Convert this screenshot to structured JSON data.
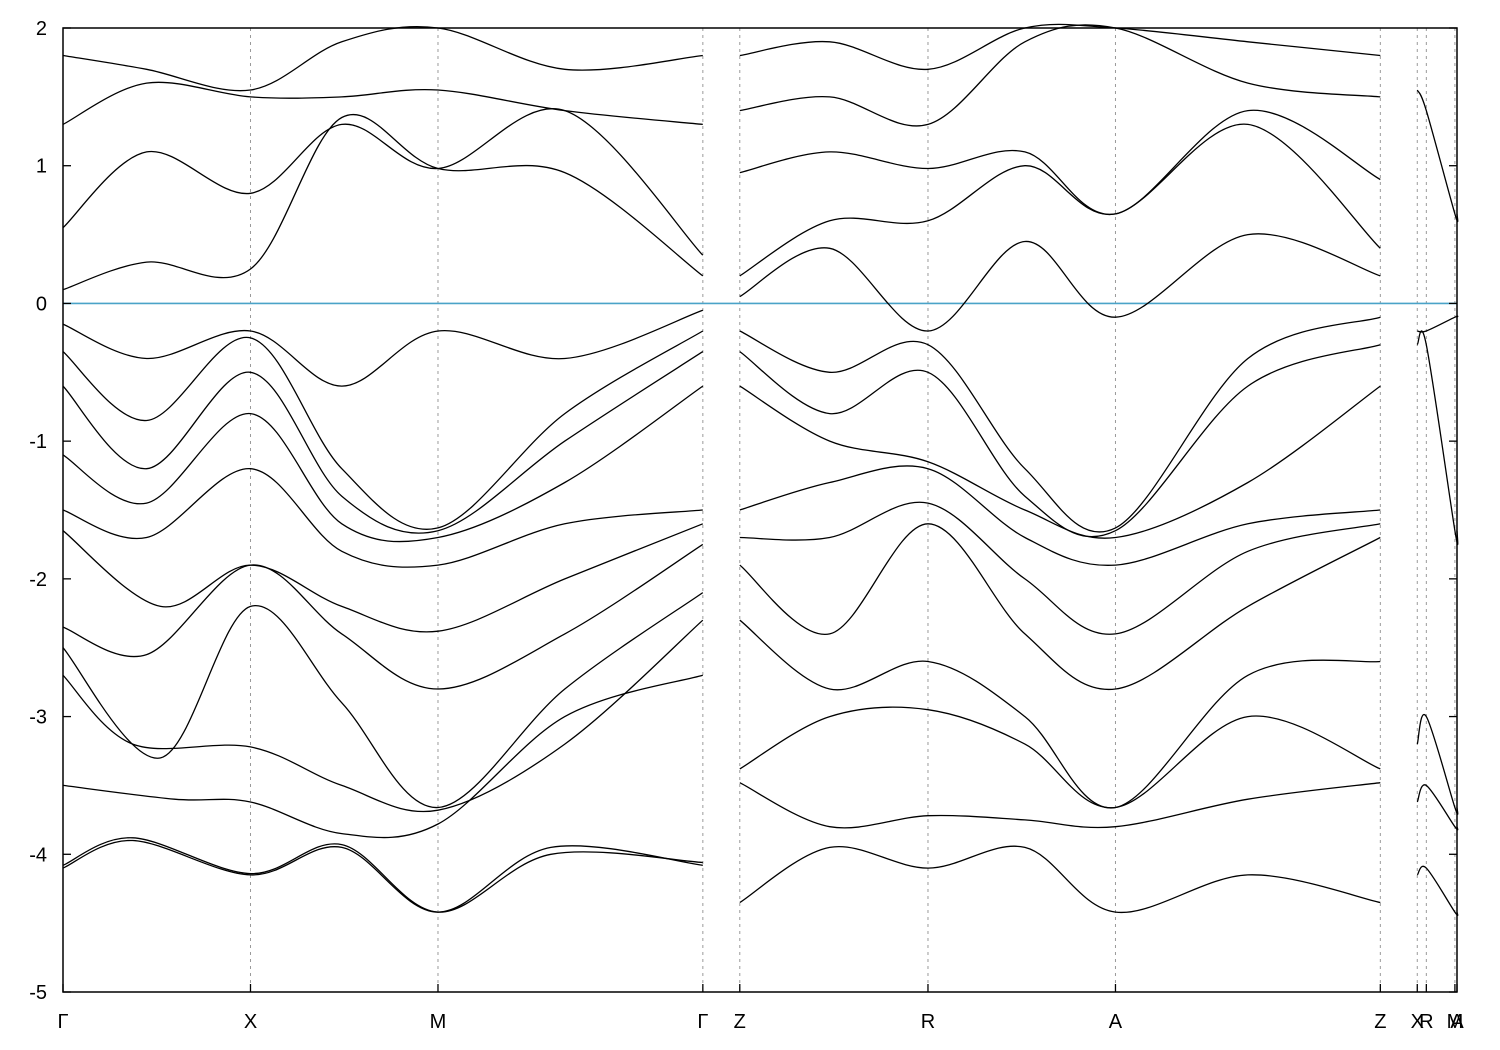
{
  "chart_data": {
    "type": "line",
    "title": "",
    "xlabel": "",
    "ylabel": "",
    "ylim": [
      -5,
      2
    ],
    "yticks": [
      2,
      1,
      0,
      -1,
      -2,
      -3,
      -4,
      -5
    ],
    "xlim": [
      0,
      1.0
    ],
    "kpoints": [
      {
        "label": "Γ",
        "x": 0.0
      },
      {
        "label": "X",
        "x": 0.1345
      },
      {
        "label": "M",
        "x": 0.269
      },
      {
        "label": "Γ",
        "x": 0.459
      },
      {
        "label": "Z",
        "x": 0.4855
      },
      {
        "label": "R",
        "x": 0.6205
      },
      {
        "label": "A",
        "x": 0.755
      },
      {
        "label": "Z",
        "x": 0.945
      },
      {
        "label": "X",
        "x": 0.9715
      },
      {
        "label": "R",
        "x": 0.978
      },
      {
        "label": "M",
        "x": 0.9985
      },
      {
        "label": "A",
        "x": 1.0
      }
    ],
    "fermi_level": {
      "y": 0,
      "color": "#4aa3c8"
    },
    "series_color": "#000000",
    "grid": "vertical dotted at k-points",
    "series": [
      {
        "x": [
          0,
          0.05,
          0.1345,
          0.2,
          0.269,
          0.35,
          0.459
        ],
        "values": [
          -4.1,
          -3.9,
          -4.15,
          -3.95,
          -4.42,
          -3.95,
          -4.08
        ]
      },
      {
        "x": [
          0,
          0.05,
          0.1345,
          0.2,
          0.269,
          0.35,
          0.459
        ],
        "values": [
          -4.08,
          -3.88,
          -4.14,
          -3.93,
          -4.42,
          -4.0,
          -4.06
        ]
      },
      {
        "x": [
          0,
          0.08,
          0.1345,
          0.2,
          0.269,
          0.36,
          0.459
        ],
        "values": [
          -3.5,
          -3.6,
          -3.62,
          -3.85,
          -3.78,
          -3.0,
          -2.7
        ]
      },
      {
        "x": [
          0,
          0.05,
          0.1345,
          0.2,
          0.269,
          0.36,
          0.459
        ],
        "values": [
          -2.7,
          -3.2,
          -3.22,
          -3.5,
          -3.68,
          -3.2,
          -2.3
        ]
      },
      {
        "x": [
          0,
          0.07,
          0.1345,
          0.2,
          0.269,
          0.36,
          0.459
        ],
        "values": [
          -2.5,
          -3.3,
          -2.2,
          -2.9,
          -3.66,
          -2.8,
          -2.1
        ]
      },
      {
        "x": [
          0,
          0.06,
          0.1345,
          0.2,
          0.269,
          0.36,
          0.459
        ],
        "values": [
          -2.35,
          -2.55,
          -1.9,
          -2.4,
          -2.8,
          -2.4,
          -1.75
        ]
      },
      {
        "x": [
          0,
          0.07,
          0.1345,
          0.2,
          0.269,
          0.36,
          0.459
        ],
        "values": [
          -1.65,
          -2.2,
          -1.9,
          -2.2,
          -2.38,
          -2.0,
          -1.6
        ]
      },
      {
        "x": [
          0,
          0.06,
          0.1345,
          0.2,
          0.269,
          0.36,
          0.459
        ],
        "values": [
          -1.5,
          -1.7,
          -1.2,
          -1.8,
          -1.9,
          -1.6,
          -1.5
        ]
      },
      {
        "x": [
          0,
          0.06,
          0.1345,
          0.2,
          0.269,
          0.36,
          0.459
        ],
        "values": [
          -1.1,
          -1.45,
          -0.8,
          -1.6,
          -1.7,
          -1.3,
          -0.6
        ]
      },
      {
        "x": [
          0,
          0.06,
          0.1345,
          0.2,
          0.269,
          0.36,
          0.459
        ],
        "values": [
          -0.6,
          -1.2,
          -0.5,
          -1.4,
          -1.65,
          -1.0,
          -0.35
        ]
      },
      {
        "x": [
          0,
          0.06,
          0.1345,
          0.2,
          0.269,
          0.36,
          0.459
        ],
        "values": [
          -0.35,
          -0.85,
          -0.25,
          -1.2,
          -1.63,
          -0.8,
          -0.2
        ]
      },
      {
        "x": [
          0,
          0.06,
          0.1345,
          0.2,
          0.269,
          0.36,
          0.459
        ],
        "values": [
          -0.15,
          -0.4,
          -0.2,
          -0.6,
          -0.2,
          -0.4,
          -0.05
        ]
      },
      {
        "x": [
          0,
          0.06,
          0.1345,
          0.2,
          0.269,
          0.36,
          0.459
        ],
        "values": [
          0.1,
          0.3,
          0.25,
          1.35,
          0.98,
          0.95,
          0.2
        ]
      },
      {
        "x": [
          0,
          0.06,
          0.1345,
          0.2,
          0.269,
          0.36,
          0.459
        ],
        "values": [
          0.55,
          1.1,
          0.8,
          1.3,
          0.98,
          1.4,
          0.35
        ]
      },
      {
        "x": [
          0,
          0.06,
          0.1345,
          0.2,
          0.269,
          0.36,
          0.459
        ],
        "values": [
          1.3,
          1.6,
          1.5,
          1.5,
          1.55,
          1.4,
          1.3
        ]
      },
      {
        "x": [
          0,
          0.06,
          0.1345,
          0.2,
          0.269,
          0.36,
          0.459
        ],
        "values": [
          1.8,
          1.7,
          1.55,
          1.9,
          2.0,
          1.7,
          1.8
        ]
      },
      {
        "x": [
          0.4855,
          0.55,
          0.6205,
          0.69,
          0.755,
          0.85,
          0.945
        ],
        "values": [
          -4.35,
          -3.95,
          -4.1,
          -3.95,
          -4.42,
          -4.15,
          -4.35
        ]
      },
      {
        "x": [
          0.4855,
          0.55,
          0.6205,
          0.69,
          0.755,
          0.85,
          0.945
        ],
        "values": [
          -3.48,
          -3.8,
          -3.72,
          -3.75,
          -3.8,
          -3.6,
          -3.48
        ]
      },
      {
        "x": [
          0.4855,
          0.55,
          0.6205,
          0.69,
          0.755,
          0.85,
          0.945
        ],
        "values": [
          -3.38,
          -3.0,
          -2.95,
          -3.2,
          -3.66,
          -3.0,
          -3.38
        ]
      },
      {
        "x": [
          0.4855,
          0.55,
          0.6205,
          0.69,
          0.755,
          0.85,
          0.945
        ],
        "values": [
          -2.3,
          -2.8,
          -2.6,
          -3.0,
          -3.66,
          -2.7,
          -2.6
        ]
      },
      {
        "x": [
          0.4855,
          0.55,
          0.6205,
          0.69,
          0.755,
          0.85,
          0.945
        ],
        "values": [
          -1.9,
          -2.4,
          -1.6,
          -2.4,
          -2.8,
          -2.2,
          -1.7
        ]
      },
      {
        "x": [
          0.4855,
          0.55,
          0.6205,
          0.69,
          0.755,
          0.85,
          0.945
        ],
        "values": [
          -1.7,
          -1.7,
          -1.45,
          -2.0,
          -2.4,
          -1.8,
          -1.6
        ]
      },
      {
        "x": [
          0.4855,
          0.55,
          0.6205,
          0.69,
          0.755,
          0.85,
          0.945
        ],
        "values": [
          -1.5,
          -1.3,
          -1.2,
          -1.7,
          -1.9,
          -1.6,
          -1.5
        ]
      },
      {
        "x": [
          0.4855,
          0.55,
          0.6205,
          0.69,
          0.755,
          0.85,
          0.945
        ],
        "values": [
          -0.6,
          -1.0,
          -1.15,
          -1.5,
          -1.7,
          -1.3,
          -0.6
        ]
      },
      {
        "x": [
          0.4855,
          0.55,
          0.6205,
          0.69,
          0.755,
          0.85,
          0.945
        ],
        "values": [
          -0.35,
          -0.8,
          -0.5,
          -1.4,
          -1.65,
          -0.6,
          -0.3
        ]
      },
      {
        "x": [
          0.4855,
          0.55,
          0.6205,
          0.69,
          0.755,
          0.85,
          0.945
        ],
        "values": [
          -0.2,
          -0.5,
          -0.3,
          -1.2,
          -1.63,
          -0.4,
          -0.1
        ]
      },
      {
        "x": [
          0.4855,
          0.55,
          0.6205,
          0.69,
          0.755,
          0.85,
          0.945
        ],
        "values": [
          0.05,
          0.4,
          -0.2,
          0.45,
          -0.1,
          0.5,
          0.2
        ]
      },
      {
        "x": [
          0.4855,
          0.55,
          0.6205,
          0.69,
          0.755,
          0.85,
          0.945
        ],
        "values": [
          0.2,
          0.6,
          0.6,
          1.0,
          0.65,
          1.3,
          0.4
        ]
      },
      {
        "x": [
          0.4855,
          0.55,
          0.6205,
          0.69,
          0.755,
          0.85,
          0.945
        ],
        "values": [
          0.95,
          1.1,
          0.98,
          1.1,
          0.65,
          1.4,
          0.9
        ]
      },
      {
        "x": [
          0.4855,
          0.55,
          0.6205,
          0.69,
          0.755,
          0.85,
          0.945
        ],
        "values": [
          1.4,
          1.5,
          1.3,
          1.9,
          2.0,
          1.6,
          1.5
        ]
      },
      {
        "x": [
          0.4855,
          0.55,
          0.6205,
          0.69,
          0.755,
          0.85,
          0.945
        ],
        "values": [
          1.8,
          1.9,
          1.7,
          2.0,
          2.0,
          1.9,
          1.8
        ]
      },
      {
        "x": [
          0.9715,
          0.978,
          0.9985,
          1.0
        ],
        "values": [
          -4.15,
          -4.1,
          -4.42,
          -4.42
        ]
      },
      {
        "x": [
          0.9715,
          0.978,
          0.9985,
          1.0
        ],
        "values": [
          -3.62,
          -3.5,
          -3.8,
          -3.8
        ]
      },
      {
        "x": [
          0.9715,
          0.978,
          0.9985,
          1.0
        ],
        "values": [
          -3.2,
          -3.0,
          -3.66,
          -3.66
        ]
      },
      {
        "x": [
          0.9715,
          0.978,
          0.9985,
          1.0
        ],
        "values": [
          -0.3,
          -0.3,
          -1.65,
          -1.65
        ]
      },
      {
        "x": [
          0.9715,
          0.978,
          0.9985,
          1.0
        ],
        "values": [
          -0.2,
          -0.2,
          -0.1,
          -0.1
        ]
      },
      {
        "x": [
          0.9715,
          0.978,
          0.9985,
          1.0
        ],
        "values": [
          1.55,
          1.4,
          0.65,
          0.65
        ]
      }
    ]
  }
}
